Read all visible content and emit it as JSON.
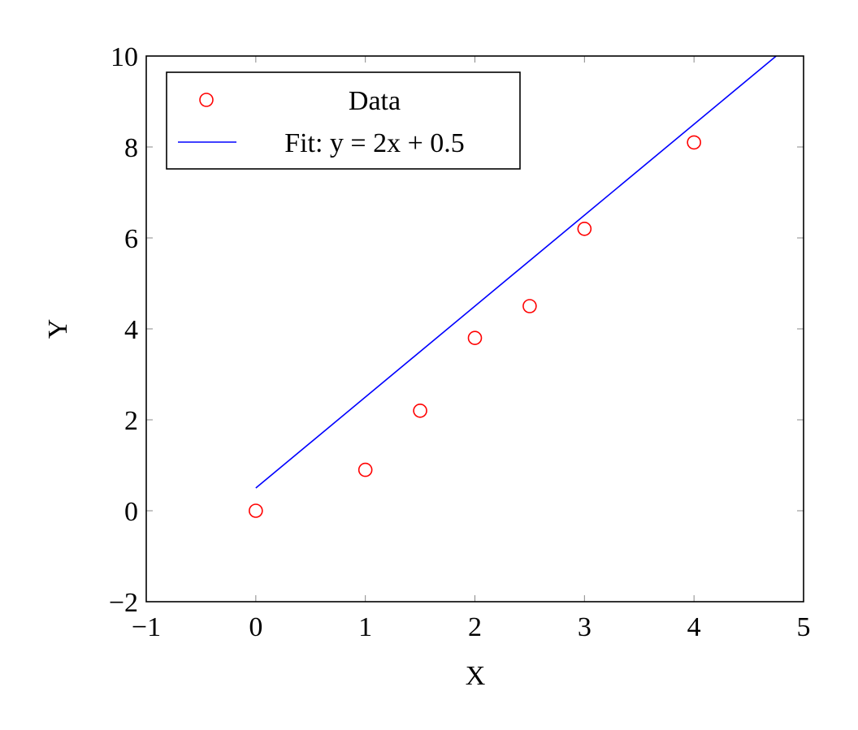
{
  "chart_data": {
    "type": "scatter",
    "x_label": "X",
    "y_label": "Y",
    "xlim": [
      -1,
      5
    ],
    "ylim": [
      -2,
      10
    ],
    "xticks": [
      {
        "value": -1,
        "label": "−1"
      },
      0,
      1,
      2,
      3,
      4,
      5
    ],
    "yticks": [
      {
        "value": -2,
        "label": "−2"
      },
      0,
      2,
      4,
      6,
      8,
      10
    ],
    "legend": "upper left",
    "series": [
      {
        "name": "Data",
        "type": "scatter",
        "color": "#ff0000",
        "x": [
          0,
          1,
          1.5,
          2,
          2.5,
          3,
          4
        ],
        "values": [
          0,
          0.9,
          2.2,
          3.8,
          4.5,
          6.2,
          8.1
        ]
      },
      {
        "name": "Fit: y = 2x + 0.5",
        "type": "line",
        "color": "#0000ff",
        "x": [
          0,
          4.75
        ],
        "values": [
          0.5,
          10
        ]
      }
    ]
  }
}
